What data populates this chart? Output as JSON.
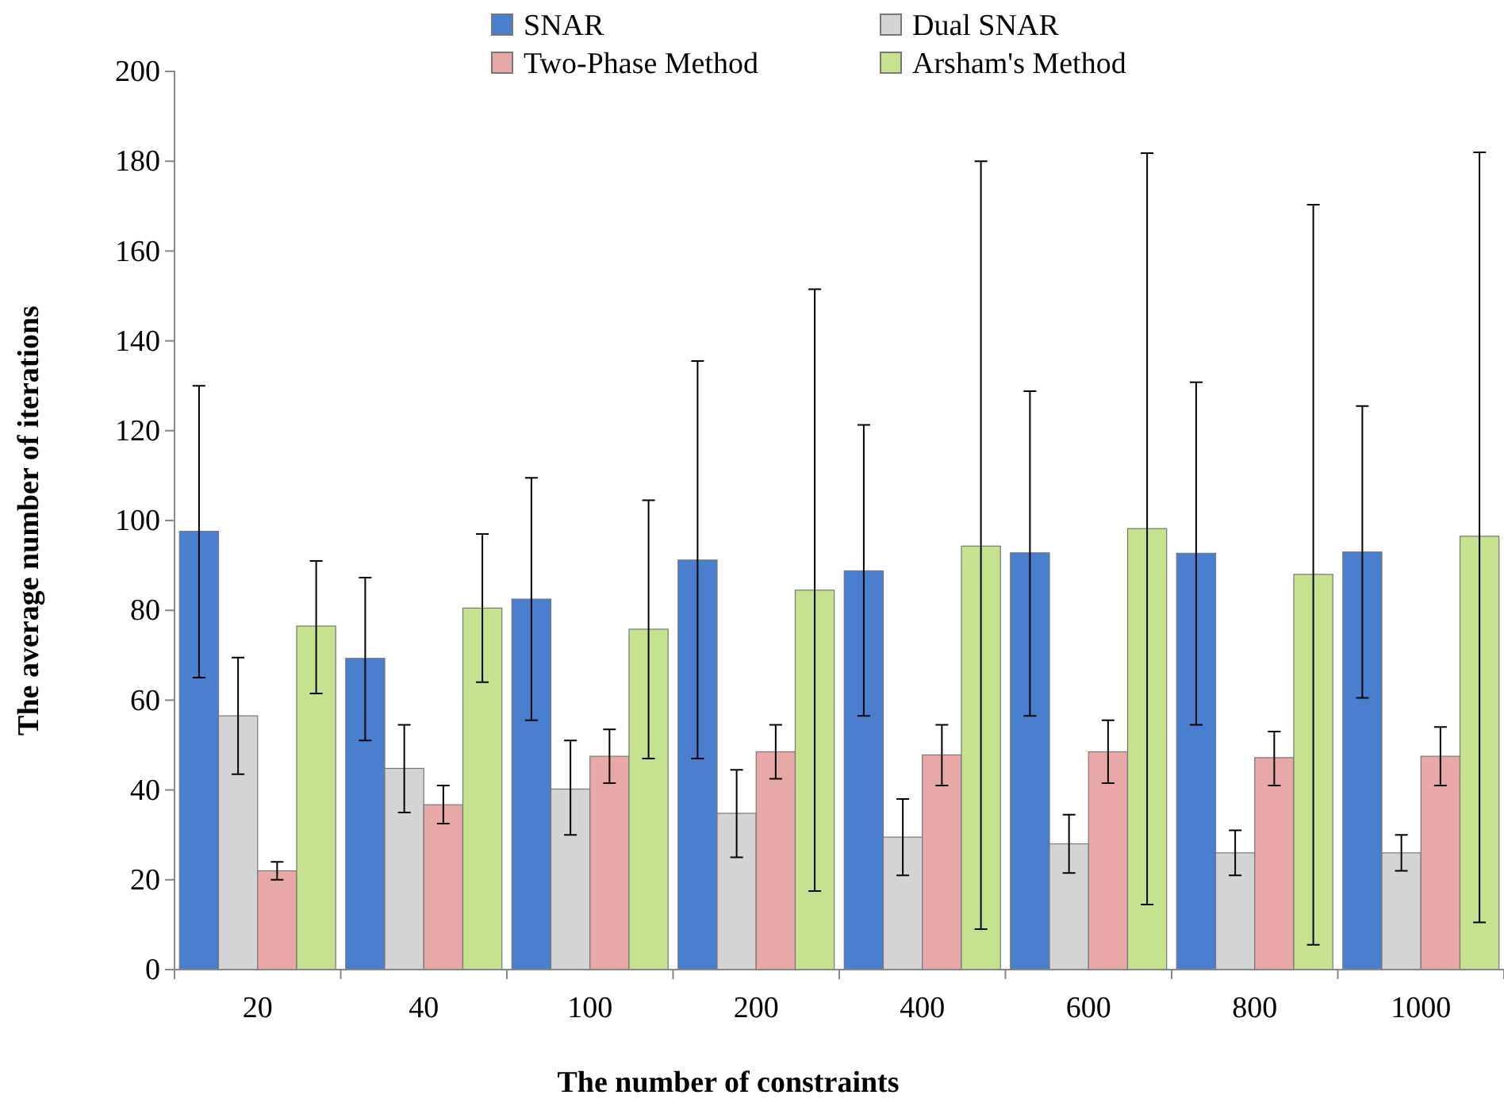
{
  "chart_data": {
    "type": "bar",
    "xlabel": "The number of constraints",
    "ylabel": "The average number of iterations",
    "categories": [
      "20",
      "40",
      "100",
      "200",
      "400",
      "600",
      "800",
      "1000"
    ],
    "ylim": [
      0,
      200
    ],
    "yticks": [
      0,
      20,
      40,
      60,
      80,
      100,
      120,
      140,
      160,
      180,
      200
    ],
    "legend": "top",
    "grid": false,
    "series": [
      {
        "name": "SNAR",
        "color": "#4a7fd0",
        "values": [
          97.6,
          69.3,
          82.5,
          91.2,
          88.8,
          92.8,
          92.7,
          93
        ],
        "errors": [
          [
            65,
            130
          ],
          [
            51,
            87.3
          ],
          [
            55.5,
            109.5
          ],
          [
            47,
            135.5
          ],
          [
            56.5,
            121.3
          ],
          [
            56.5,
            128.8
          ],
          [
            54.5,
            130.8
          ],
          [
            60.5,
            125.5
          ]
        ]
      },
      {
        "name": "Dual SNAR",
        "color": "#d4d4d4",
        "values": [
          56.5,
          44.8,
          40.2,
          34.8,
          29.5,
          28,
          26,
          26
        ],
        "errors": [
          [
            43.5,
            69.5
          ],
          [
            35,
            54.5
          ],
          [
            30,
            51
          ],
          [
            25,
            44.5
          ],
          [
            21,
            38
          ],
          [
            21.5,
            34.5
          ],
          [
            21,
            31
          ],
          [
            22,
            30
          ]
        ]
      },
      {
        "name": "Two-Phase Method",
        "color": "#e8a8a8",
        "values": [
          22,
          36.7,
          47.5,
          48.5,
          47.8,
          48.5,
          47.2,
          47.5
        ],
        "errors": [
          [
            20,
            24
          ],
          [
            32.5,
            41
          ],
          [
            41.5,
            53.5
          ],
          [
            42.5,
            54.5
          ],
          [
            41,
            54.5
          ],
          [
            41.5,
            55.5
          ],
          [
            41,
            53
          ],
          [
            41,
            54
          ]
        ]
      },
      {
        "name": "Arsham's Method",
        "color": "#c5e28e",
        "values": [
          76.5,
          80.5,
          75.8,
          84.5,
          94.3,
          98.2,
          88,
          96.5
        ],
        "errors": [
          [
            61.5,
            91
          ],
          [
            64,
            97
          ],
          [
            47,
            104.5
          ],
          [
            17.5,
            151.5
          ],
          [
            9,
            180
          ],
          [
            14.5,
            181.8
          ],
          [
            5.5,
            170.3
          ],
          [
            10.5,
            182
          ]
        ]
      }
    ]
  }
}
